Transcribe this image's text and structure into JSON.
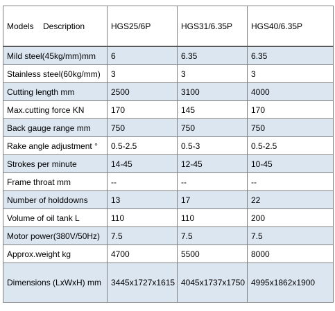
{
  "table": {
    "header": {
      "label": "Models    Description",
      "models": [
        "HGS25/6P",
        "HGS31/6.35P",
        "HGS40/6.35P"
      ]
    },
    "rows": [
      {
        "label": "Mild steel(45kg/mm)mm",
        "values": [
          "6",
          "6.35",
          "6.35"
        ]
      },
      {
        "label": "Stainless steel(60kg/mm)",
        "values": [
          "3",
          "3",
          "3"
        ]
      },
      {
        "label": "Cutting length mm",
        "values": [
          "2500",
          "3100",
          "4000"
        ]
      },
      {
        "label": "Max.cutting force KN",
        "values": [
          "170",
          "145",
          "170"
        ]
      },
      {
        "label": "Back gauge range mm",
        "values": [
          "750",
          "750",
          "750"
        ]
      },
      {
        "label": "Rake angle adjustment °",
        "values": [
          "0.5-2.5",
          "0.5-3",
          "0.5-2.5"
        ]
      },
      {
        "label": "Strokes per minute",
        "values": [
          "14-45",
          "12-45",
          "10-45"
        ]
      },
      {
        "label": "Frame throat mm",
        "values": [
          "--",
          "--",
          "--"
        ]
      },
      {
        "label": "Number of holddowns",
        "values": [
          "13",
          "17",
          "22"
        ]
      },
      {
        "label": "Volume of oil tank L",
        "values": [
          "110",
          "110",
          "200"
        ]
      },
      {
        "label": "Motor power(380V/50Hz)",
        "values": [
          "7.5",
          "7.5",
          "7.5"
        ]
      },
      {
        "label": "Approx.weight kg",
        "values": [
          "4700",
          "5500",
          "8000"
        ]
      },
      {
        "label": "Dimensions (LxWxH) mm",
        "values": [
          "3445x1727x1615",
          "4045x1737x1750",
          "4995x1862x1900"
        ]
      }
    ],
    "colors": {
      "shaded_row": "#dce6f1",
      "border": "#7f7f7f"
    }
  }
}
